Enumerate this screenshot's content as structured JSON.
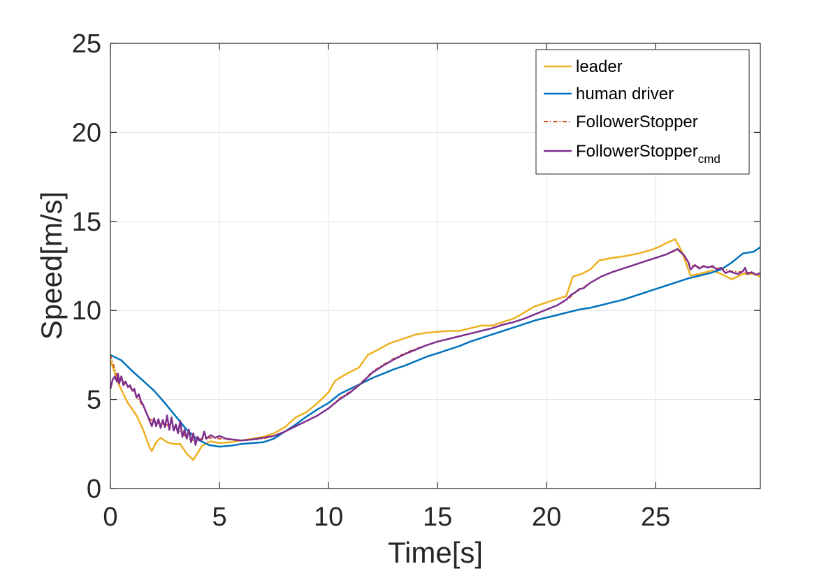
{
  "chart_data": {
    "type": "line",
    "xlabel": "Time[s]",
    "ylabel": "Speed[m/s]",
    "xlim": [
      0,
      29.8
    ],
    "ylim": [
      0,
      25
    ],
    "x_ticks": [
      "0",
      "5",
      "10",
      "15",
      "20",
      "25"
    ],
    "y_ticks": [
      "0",
      "5",
      "10",
      "15",
      "20",
      "25"
    ],
    "grid": true,
    "legend_position": "top-right",
    "legend": [
      {
        "main": "leader",
        "sub": ""
      },
      {
        "main": "human driver",
        "sub": ""
      },
      {
        "main": "FollowerStopper",
        "sub": ""
      },
      {
        "main": "FollowerStopper",
        "sub": "cmd"
      }
    ],
    "series": [
      {
        "key": "leader",
        "color": "#EDB120",
        "style": "solid",
        "points": [
          [
            0,
            7.2
          ],
          [
            0.4,
            5.8
          ],
          [
            0.8,
            4.8
          ],
          [
            1.2,
            4.1
          ],
          [
            1.5,
            3.3
          ],
          [
            1.8,
            2.3
          ],
          [
            1.9,
            2.1
          ],
          [
            2.1,
            2.6
          ],
          [
            2.3,
            2.85
          ],
          [
            2.6,
            2.6
          ],
          [
            2.9,
            2.5
          ],
          [
            3.2,
            2.5
          ],
          [
            3.5,
            1.95
          ],
          [
            3.8,
            1.6
          ],
          [
            4.2,
            2.4
          ],
          [
            4.6,
            2.65
          ],
          [
            5.0,
            2.55
          ],
          [
            5.5,
            2.6
          ],
          [
            6.0,
            2.7
          ],
          [
            6.5,
            2.8
          ],
          [
            7.0,
            2.9
          ],
          [
            7.5,
            3.1
          ],
          [
            8.0,
            3.45
          ],
          [
            8.5,
            4.0
          ],
          [
            9.0,
            4.3
          ],
          [
            9.5,
            4.8
          ],
          [
            10.0,
            5.4
          ],
          [
            10.3,
            6.05
          ],
          [
            10.7,
            6.35
          ],
          [
            11.0,
            6.55
          ],
          [
            11.4,
            6.8
          ],
          [
            11.8,
            7.5
          ],
          [
            12.2,
            7.75
          ],
          [
            12.8,
            8.15
          ],
          [
            13.4,
            8.4
          ],
          [
            14.0,
            8.65
          ],
          [
            14.5,
            8.75
          ],
          [
            15.0,
            8.8
          ],
          [
            15.5,
            8.85
          ],
          [
            16.0,
            8.85
          ],
          [
            16.5,
            9.0
          ],
          [
            17.0,
            9.15
          ],
          [
            17.5,
            9.15
          ],
          [
            18.0,
            9.35
          ],
          [
            18.5,
            9.55
          ],
          [
            19.0,
            9.9
          ],
          [
            19.4,
            10.2
          ],
          [
            20.0,
            10.45
          ],
          [
            20.5,
            10.65
          ],
          [
            20.9,
            10.8
          ],
          [
            21.2,
            11.9
          ],
          [
            21.6,
            12.05
          ],
          [
            22.0,
            12.3
          ],
          [
            22.4,
            12.8
          ],
          [
            23.0,
            12.95
          ],
          [
            23.6,
            13.05
          ],
          [
            24.2,
            13.2
          ],
          [
            24.8,
            13.4
          ],
          [
            25.2,
            13.6
          ],
          [
            25.6,
            13.85
          ],
          [
            25.9,
            14.0
          ],
          [
            26.2,
            13.3
          ],
          [
            26.6,
            11.95
          ],
          [
            27.0,
            12.05
          ],
          [
            27.6,
            12.25
          ],
          [
            28.0,
            12.05
          ],
          [
            28.5,
            11.75
          ],
          [
            29.0,
            12.05
          ],
          [
            29.5,
            12.05
          ],
          [
            29.8,
            11.9
          ]
        ]
      },
      {
        "key": "human",
        "color": "#0072BD",
        "style": "solid",
        "points": [
          [
            0,
            7.5
          ],
          [
            0.5,
            7.2
          ],
          [
            1.0,
            6.6
          ],
          [
            1.5,
            6.05
          ],
          [
            2.0,
            5.5
          ],
          [
            2.5,
            4.8
          ],
          [
            3.0,
            4.05
          ],
          [
            3.5,
            3.3
          ],
          [
            4.0,
            2.75
          ],
          [
            4.5,
            2.45
          ],
          [
            5.0,
            2.35
          ],
          [
            5.5,
            2.4
          ],
          [
            6.0,
            2.5
          ],
          [
            6.5,
            2.55
          ],
          [
            7.0,
            2.6
          ],
          [
            7.5,
            2.8
          ],
          [
            8.0,
            3.2
          ],
          [
            8.5,
            3.6
          ],
          [
            9.0,
            4.05
          ],
          [
            9.5,
            4.45
          ],
          [
            10.0,
            4.8
          ],
          [
            10.5,
            5.3
          ],
          [
            11.0,
            5.6
          ],
          [
            11.5,
            5.9
          ],
          [
            12.0,
            6.2
          ],
          [
            12.5,
            6.45
          ],
          [
            13.0,
            6.7
          ],
          [
            13.5,
            6.9
          ],
          [
            14.0,
            7.15
          ],
          [
            14.5,
            7.4
          ],
          [
            15.0,
            7.6
          ],
          [
            15.5,
            7.8
          ],
          [
            16.0,
            8.0
          ],
          [
            16.5,
            8.25
          ],
          [
            17.0,
            8.45
          ],
          [
            17.5,
            8.65
          ],
          [
            18.0,
            8.85
          ],
          [
            18.5,
            9.05
          ],
          [
            19.0,
            9.25
          ],
          [
            19.5,
            9.45
          ],
          [
            20.0,
            9.6
          ],
          [
            20.5,
            9.75
          ],
          [
            21.0,
            9.9
          ],
          [
            21.5,
            10.05
          ],
          [
            22.0,
            10.15
          ],
          [
            22.5,
            10.3
          ],
          [
            23.0,
            10.45
          ],
          [
            23.5,
            10.6
          ],
          [
            24.0,
            10.8
          ],
          [
            24.5,
            11.0
          ],
          [
            25.0,
            11.2
          ],
          [
            25.5,
            11.4
          ],
          [
            26.0,
            11.6
          ],
          [
            26.5,
            11.8
          ],
          [
            27.0,
            11.95
          ],
          [
            27.5,
            12.1
          ],
          [
            28.0,
            12.3
          ],
          [
            28.5,
            12.7
          ],
          [
            29.0,
            13.2
          ],
          [
            29.5,
            13.3
          ],
          [
            29.8,
            13.55
          ]
        ]
      },
      {
        "key": "fs",
        "color": "#D95319",
        "style": "dashdot",
        "points": [
          [
            0,
            7.5
          ],
          [
            0.3,
            6.3
          ],
          [
            0.6,
            6.0
          ],
          [
            0.9,
            5.7
          ],
          [
            1.2,
            5.2
          ],
          [
            1.5,
            4.6
          ],
          [
            1.8,
            3.9
          ],
          [
            2.1,
            3.7
          ],
          [
            2.4,
            3.6
          ],
          [
            2.7,
            3.55
          ],
          [
            3.0,
            3.4
          ],
          [
            3.3,
            3.1
          ],
          [
            3.6,
            2.75
          ],
          [
            3.9,
            2.7
          ],
          [
            4.2,
            2.8
          ],
          [
            4.5,
            2.85
          ],
          [
            5.0,
            2.8
          ],
          [
            5.5,
            2.75
          ],
          [
            6.0,
            2.7
          ],
          [
            6.5,
            2.75
          ],
          [
            7.0,
            2.8
          ],
          [
            7.5,
            2.95
          ],
          [
            8.0,
            3.2
          ],
          [
            8.5,
            3.5
          ],
          [
            9.0,
            3.8
          ],
          [
            9.5,
            4.1
          ],
          [
            10.0,
            4.5
          ],
          [
            10.5,
            5.05
          ],
          [
            11.0,
            5.45
          ],
          [
            11.5,
            5.95
          ],
          [
            12.0,
            6.55
          ],
          [
            12.5,
            6.95
          ],
          [
            13.0,
            7.3
          ],
          [
            13.5,
            7.6
          ],
          [
            14.0,
            7.85
          ],
          [
            14.5,
            8.05
          ],
          [
            15.0,
            8.25
          ],
          [
            15.5,
            8.4
          ],
          [
            16.0,
            8.55
          ],
          [
            16.5,
            8.7
          ],
          [
            17.0,
            8.85
          ],
          [
            17.5,
            9.0
          ],
          [
            18.0,
            9.2
          ],
          [
            18.5,
            9.35
          ],
          [
            19.0,
            9.55
          ],
          [
            19.5,
            9.8
          ],
          [
            20.0,
            10.05
          ],
          [
            20.5,
            10.3
          ],
          [
            21.0,
            10.65
          ],
          [
            21.3,
            11.0
          ],
          [
            21.7,
            11.3
          ],
          [
            22.0,
            11.55
          ],
          [
            22.5,
            11.9
          ],
          [
            23.0,
            12.15
          ],
          [
            23.5,
            12.35
          ],
          [
            24.0,
            12.55
          ],
          [
            24.5,
            12.75
          ],
          [
            25.0,
            12.95
          ],
          [
            25.5,
            13.15
          ],
          [
            26.0,
            13.4
          ],
          [
            26.3,
            13.1
          ],
          [
            26.6,
            12.55
          ],
          [
            27.0,
            12.45
          ],
          [
            27.5,
            12.45
          ],
          [
            28.0,
            12.35
          ],
          [
            28.5,
            12.2
          ],
          [
            29.0,
            12.15
          ],
          [
            29.5,
            12.1
          ],
          [
            29.8,
            12.05
          ]
        ]
      },
      {
        "key": "cmd",
        "color": "#7E2F8E",
        "style": "solid",
        "points": [
          [
            0,
            5.6
          ],
          [
            0.1,
            6.1
          ],
          [
            0.2,
            6.3
          ],
          [
            0.3,
            6.0
          ],
          [
            0.35,
            6.45
          ],
          [
            0.4,
            5.9
          ],
          [
            0.5,
            6.3
          ],
          [
            0.6,
            5.8
          ],
          [
            0.7,
            6.0
          ],
          [
            0.8,
            5.7
          ],
          [
            0.9,
            5.8
          ],
          [
            1.0,
            5.5
          ],
          [
            1.1,
            5.6
          ],
          [
            1.2,
            5.1
          ],
          [
            1.3,
            5.3
          ],
          [
            1.4,
            4.9
          ],
          [
            1.5,
            4.7
          ],
          [
            1.6,
            4.4
          ],
          [
            1.7,
            4.1
          ],
          [
            1.8,
            3.8
          ],
          [
            1.9,
            3.5
          ],
          [
            2.0,
            3.95
          ],
          [
            2.1,
            3.5
          ],
          [
            2.2,
            3.9
          ],
          [
            2.3,
            3.4
          ],
          [
            2.4,
            3.85
          ],
          [
            2.5,
            3.45
          ],
          [
            2.6,
            4.1
          ],
          [
            2.7,
            3.3
          ],
          [
            2.8,
            4.0
          ],
          [
            2.9,
            3.25
          ],
          [
            3.0,
            3.6
          ],
          [
            3.1,
            3.1
          ],
          [
            3.2,
            3.8
          ],
          [
            3.3,
            2.9
          ],
          [
            3.4,
            3.3
          ],
          [
            3.5,
            2.8
          ],
          [
            3.6,
            3.3
          ],
          [
            3.7,
            2.6
          ],
          [
            3.8,
            3.1
          ],
          [
            3.9,
            2.45
          ],
          [
            4.0,
            2.9
          ],
          [
            4.1,
            2.7
          ],
          [
            4.2,
            2.75
          ],
          [
            4.3,
            3.2
          ],
          [
            4.4,
            2.8
          ],
          [
            4.6,
            3.0
          ],
          [
            4.8,
            2.85
          ],
          [
            5.0,
            2.95
          ],
          [
            5.3,
            2.8
          ],
          [
            5.6,
            2.75
          ],
          [
            6.0,
            2.7
          ],
          [
            6.5,
            2.75
          ],
          [
            7.0,
            2.85
          ],
          [
            7.5,
            2.95
          ],
          [
            8.0,
            3.2
          ],
          [
            8.5,
            3.5
          ],
          [
            9.0,
            3.8
          ],
          [
            9.5,
            4.1
          ],
          [
            10.0,
            4.5
          ],
          [
            10.5,
            5.0
          ],
          [
            11.0,
            5.4
          ],
          [
            11.5,
            5.9
          ],
          [
            12.0,
            6.5
          ],
          [
            12.5,
            6.9
          ],
          [
            13.0,
            7.25
          ],
          [
            13.5,
            7.55
          ],
          [
            14.0,
            7.8
          ],
          [
            14.5,
            8.05
          ],
          [
            15.0,
            8.25
          ],
          [
            15.5,
            8.4
          ],
          [
            16.0,
            8.55
          ],
          [
            16.5,
            8.7
          ],
          [
            17.0,
            8.85
          ],
          [
            17.5,
            9.0
          ],
          [
            18.0,
            9.2
          ],
          [
            18.5,
            9.35
          ],
          [
            19.0,
            9.55
          ],
          [
            19.5,
            9.8
          ],
          [
            20.0,
            10.05
          ],
          [
            20.5,
            10.3
          ],
          [
            20.9,
            10.6
          ],
          [
            21.1,
            10.85
          ],
          [
            21.3,
            11.0
          ],
          [
            21.5,
            11.2
          ],
          [
            21.7,
            11.25
          ],
          [
            22.0,
            11.55
          ],
          [
            22.5,
            11.9
          ],
          [
            23.0,
            12.15
          ],
          [
            23.5,
            12.35
          ],
          [
            24.0,
            12.55
          ],
          [
            24.5,
            12.75
          ],
          [
            25.0,
            12.95
          ],
          [
            25.5,
            13.15
          ],
          [
            26.0,
            13.45
          ],
          [
            26.3,
            13.1
          ],
          [
            26.5,
            12.7
          ],
          [
            26.6,
            12.3
          ],
          [
            26.8,
            12.55
          ],
          [
            27.0,
            12.35
          ],
          [
            27.2,
            12.5
          ],
          [
            27.4,
            12.4
          ],
          [
            27.6,
            12.5
          ],
          [
            27.8,
            12.3
          ],
          [
            28.0,
            12.4
          ],
          [
            28.2,
            12.1
          ],
          [
            28.4,
            12.2
          ],
          [
            28.6,
            12.1
          ],
          [
            28.8,
            12.05
          ],
          [
            29.0,
            12.2
          ],
          [
            29.1,
            12.4
          ],
          [
            29.2,
            12.05
          ],
          [
            29.4,
            12.15
          ],
          [
            29.6,
            12.0
          ],
          [
            29.8,
            12.1
          ]
        ]
      }
    ]
  }
}
